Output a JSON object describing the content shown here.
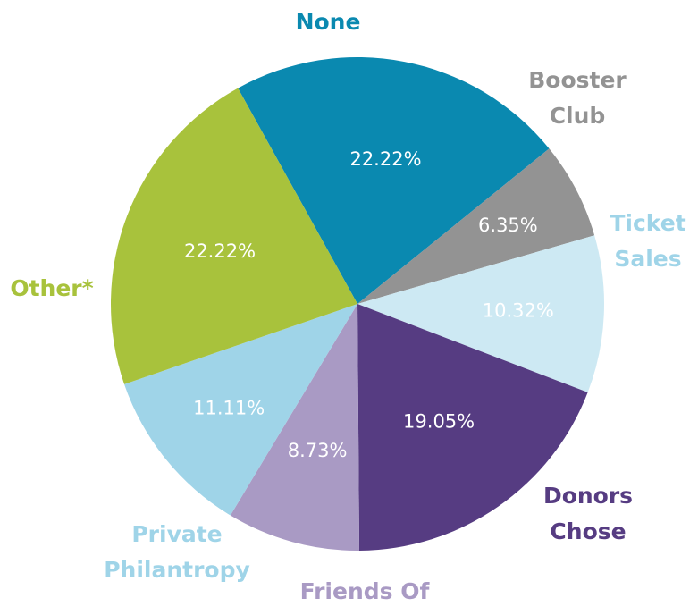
{
  "chart_data": {
    "type": "pie",
    "title": "",
    "legend": "none",
    "slices": [
      {
        "category": "None",
        "value": 22.22,
        "label": "22.22%",
        "color": "#0a89b0",
        "category_color": "#0a89b0"
      },
      {
        "category": "Booster Club",
        "value": 6.35,
        "label": "6.35%",
        "color": "#939393",
        "category_color": "#939393"
      },
      {
        "category": "Ticket Sales",
        "value": 10.32,
        "label": "10.32%",
        "color": "#cde9f3",
        "category_color": "#9fd4e8"
      },
      {
        "category": "Donors Chose",
        "value": 19.05,
        "label": "19.05%",
        "color": "#563c82",
        "category_color": "#563c82"
      },
      {
        "category": "Friends Of",
        "value": 8.73,
        "label": "8.73%",
        "color": "#a99ac4",
        "category_color": "#a99ac4"
      },
      {
        "category": "Private Philantropy",
        "value": 11.11,
        "label": "11.11%",
        "color": "#9fd4e8",
        "category_color": "#9fd4e8"
      },
      {
        "category": "Other*",
        "value": 22.22,
        "label": "22.22%",
        "color": "#a8c23c",
        "category_color": "#a8c23c"
      }
    ]
  }
}
